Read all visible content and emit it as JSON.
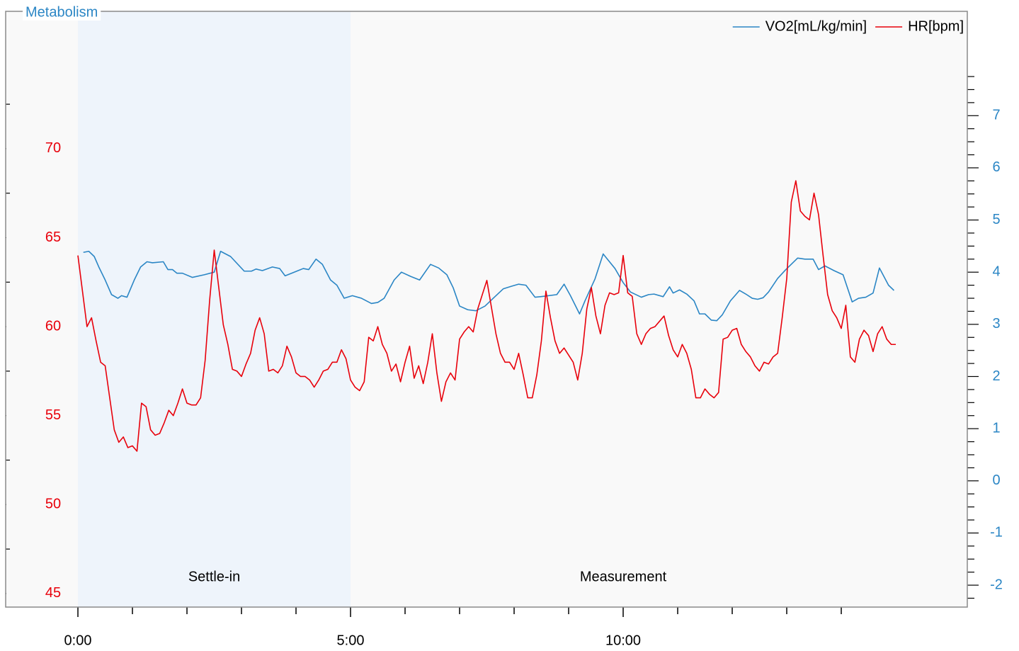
{
  "chart_data": {
    "type": "line",
    "title": "Metabolism",
    "xlim": [
      -79.5,
      978.7
    ],
    "ylim": [
      44.24,
      77.72
    ],
    "y2lim": [
      -2.42,
      9.0
    ],
    "xticks": [
      {
        "value": 0,
        "label": "0:00"
      },
      {
        "value": 300,
        "label": "5:00"
      },
      {
        "value": 600,
        "label": "10:00"
      }
    ],
    "xminorticks": [
      60,
      120,
      180,
      240,
      360,
      420,
      480,
      540,
      660,
      720,
      780,
      840
    ],
    "yticks": [
      45,
      50,
      55,
      60,
      65,
      70
    ],
    "yminorticks": [
      47.5,
      52.5,
      57.5,
      62.5,
      67.5,
      72.5
    ],
    "y2ticks": [
      -2,
      -1,
      0,
      1,
      2,
      3,
      4,
      5,
      6,
      7
    ],
    "y2minorticks": [
      -2.25,
      -1.75,
      -1.5,
      -1.25,
      -0.75,
      -0.5,
      -0.25,
      0.25,
      0.5,
      0.75,
      1.25,
      1.5,
      1.75,
      2.25,
      2.5,
      2.75,
      3.25,
      3.5,
      3.75,
      4.25,
      4.5,
      4.75,
      5.25,
      5.5,
      5.75,
      6.25,
      6.5,
      6.75,
      7.25,
      7.5,
      7.75
    ],
    "ycolor": "#e8000b",
    "y2color": "#2b86c5",
    "legend": "top-right",
    "phases": [
      {
        "label": "Settle-in",
        "start": 0,
        "end": 300,
        "color": "#eef4fb"
      },
      {
        "label": "Measurement",
        "start": 300,
        "end": 900
      }
    ],
    "series": [
      {
        "name": "VO2[mL/kg/min]",
        "color": "#2b86c5",
        "axis": "y2",
        "x": [
          6,
          12,
          18,
          23,
          30,
          37,
          44,
          48,
          54,
          62,
          69,
          76,
          82,
          94,
          99,
          104,
          109,
          115,
          126,
          139,
          150,
          157,
          168,
          183,
          191,
          196,
          203,
          214,
          222,
          228,
          238,
          248,
          254,
          262,
          269,
          278,
          285,
          293,
          302,
          312,
          323,
          330,
          337,
          348,
          356,
          366,
          376,
          388,
          397,
          406,
          413,
          420,
          429,
          438,
          448,
          457,
          468,
          477,
          485,
          493,
          503,
          514,
          527,
          535,
          542,
          552,
          558,
          569,
          578,
          584,
          591,
          600,
          608,
          620,
          628,
          634,
          644,
          651,
          655,
          662,
          670,
          678,
          684,
          690,
          697,
          703,
          709,
          718,
          728,
          735,
          742,
          748,
          754,
          760,
          770,
          779,
          792,
          800,
          809,
          815,
          822,
          832,
          842,
          852,
          859,
          867,
          875,
          882,
          892,
          898
        ],
        "values": [
          4.38,
          4.4,
          4.3,
          4.1,
          3.85,
          3.57,
          3.5,
          3.55,
          3.52,
          3.85,
          4.1,
          4.2,
          4.18,
          4.2,
          4.05,
          4.05,
          3.98,
          3.98,
          3.9,
          3.95,
          4.0,
          4.4,
          4.3,
          4.02,
          4.02,
          4.06,
          4.03,
          4.1,
          4.07,
          3.93,
          4.0,
          4.07,
          4.05,
          4.25,
          4.15,
          3.85,
          3.75,
          3.5,
          3.55,
          3.5,
          3.4,
          3.42,
          3.5,
          3.85,
          4.0,
          3.92,
          3.85,
          4.15,
          4.08,
          3.95,
          3.7,
          3.35,
          3.28,
          3.26,
          3.35,
          3.5,
          3.68,
          3.73,
          3.77,
          3.75,
          3.52,
          3.54,
          3.57,
          3.77,
          3.55,
          3.2,
          3.45,
          3.87,
          4.35,
          4.22,
          4.07,
          3.8,
          3.62,
          3.52,
          3.57,
          3.58,
          3.53,
          3.72,
          3.6,
          3.66,
          3.58,
          3.45,
          3.2,
          3.2,
          3.08,
          3.07,
          3.18,
          3.45,
          3.65,
          3.58,
          3.5,
          3.48,
          3.51,
          3.62,
          3.88,
          4.05,
          4.27,
          4.25,
          4.25,
          4.05,
          4.12,
          4.03,
          3.95,
          3.43,
          3.5,
          3.52,
          3.6,
          4.08,
          3.75,
          3.65
        ]
      },
      {
        "name": "HR[bpm]",
        "color": "#e8000b",
        "axis": "y",
        "x": [
          0,
          5,
          10,
          15,
          20,
          25,
          30,
          35,
          40,
          45,
          50,
          55,
          60,
          65,
          70,
          75,
          80,
          85,
          90,
          95,
          100,
          105,
          110,
          115,
          120,
          125,
          130,
          135,
          140,
          145,
          150,
          155,
          160,
          165,
          170,
          175,
          180,
          185,
          190,
          195,
          200,
          205,
          210,
          215,
          220,
          225,
          230,
          235,
          240,
          245,
          250,
          255,
          260,
          265,
          270,
          275,
          280,
          285,
          290,
          295,
          300,
          305,
          310,
          315,
          320,
          325,
          330,
          335,
          340,
          345,
          350,
          355,
          360,
          365,
          370,
          375,
          380,
          385,
          390,
          395,
          400,
          405,
          410,
          415,
          420,
          425,
          430,
          435,
          440,
          445,
          450,
          455,
          460,
          465,
          470,
          475,
          480,
          485,
          490,
          495,
          500,
          505,
          510,
          515,
          520,
          525,
          530,
          535,
          540,
          545,
          550,
          555,
          560,
          565,
          570,
          575,
          580,
          585,
          590,
          595,
          600,
          605,
          610,
          615,
          620,
          625,
          630,
          635,
          640,
          645,
          650,
          655,
          660,
          665,
          670,
          675,
          680,
          685,
          690,
          695,
          700,
          705,
          710,
          715,
          720,
          725,
          730,
          735,
          740,
          745,
          750,
          755,
          760,
          765,
          770,
          775,
          780,
          785,
          790,
          795,
          800,
          805,
          810,
          815,
          820,
          825,
          830,
          835,
          840,
          845,
          850,
          855,
          860,
          865,
          870,
          875,
          880,
          885,
          890,
          895,
          900
        ],
        "values": [
          64,
          62,
          60,
          60.5,
          59.2,
          58,
          57.8,
          56,
          54.2,
          53.5,
          53.8,
          53.2,
          53.3,
          53,
          55.7,
          55.5,
          54.2,
          53.9,
          54,
          54.6,
          55.3,
          55,
          55.7,
          56.5,
          55.7,
          55.6,
          55.6,
          56,
          58.1,
          61.5,
          64.3,
          62.2,
          60.1,
          59,
          57.6,
          57.5,
          57.2,
          57.9,
          58.5,
          59.8,
          60.5,
          59.6,
          57.5,
          57.6,
          57.4,
          57.8,
          58.9,
          58.3,
          57.4,
          57.2,
          57.2,
          57,
          56.6,
          57,
          57.5,
          57.6,
          58,
          58,
          58.7,
          58.2,
          57,
          56.6,
          56.4,
          56.9,
          59.4,
          59.2,
          60,
          59,
          58.5,
          57.5,
          57.9,
          56.9,
          58,
          58.9,
          57.1,
          57.8,
          56.8,
          58,
          59.6,
          57.4,
          55.8,
          56.9,
          57.4,
          57,
          59.3,
          59.7,
          60,
          59.7,
          61,
          61.8,
          62.6,
          61.1,
          59.6,
          58.5,
          58,
          58,
          57.6,
          58.5,
          57.3,
          56,
          56,
          57.3,
          59.2,
          62,
          60.5,
          59.2,
          58.5,
          58.8,
          58.4,
          58,
          57,
          58.5,
          61,
          62.2,
          60.6,
          59.6,
          61.2,
          61.9,
          61.8,
          61.9,
          64,
          61.9,
          61.7,
          59.6,
          59,
          59.6,
          59.9,
          60,
          60.3,
          60.6,
          59.5,
          58.7,
          58.3,
          59,
          58.5,
          57.6,
          56,
          56,
          56.5,
          56.2,
          56,
          56.3,
          59.3,
          59.4,
          59.8,
          59.9,
          59,
          58.6,
          58.3,
          57.8,
          57.5,
          58,
          57.9,
          58.3,
          58.5,
          60.5,
          62.7,
          67,
          68.2,
          66.5,
          66.2,
          66,
          67.5,
          66.3,
          64,
          61.8,
          60.9,
          60.5,
          59.9,
          61.2,
          58.3,
          58,
          59.3,
          59.8,
          59.5,
          58.6,
          59.6,
          60,
          59.3,
          59,
          59
        ]
      }
    ]
  }
}
